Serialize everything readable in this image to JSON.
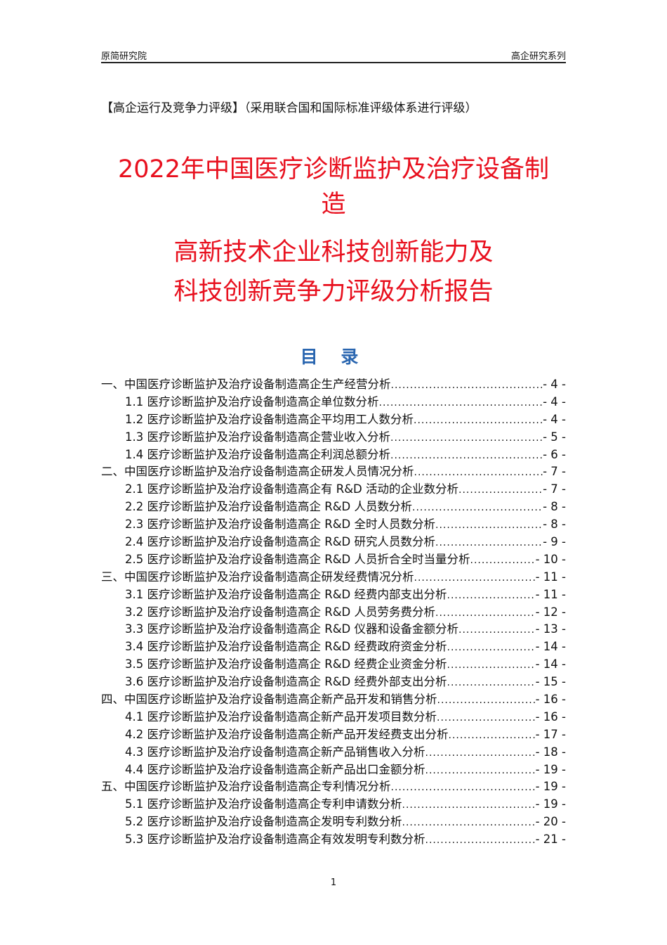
{
  "header": {
    "left": "原简研究院",
    "right": "高企研究系列"
  },
  "subtitle": "【高企运行及竞争力评级】（采用联合国和国际标准评级体系进行评级）",
  "title": {
    "line1": "2022年中国医疗诊断监护及治疗设备制",
    "line2": "造",
    "line3": "高新技术企业科技创新能力及",
    "line4": "科技创新竞争力评级分析报告"
  },
  "toc_heading": "目 录",
  "toc": [
    {
      "level": 1,
      "text": "一、中国医疗诊断监护及治疗设备制造高企生产经营分析",
      "page": "- 4 -"
    },
    {
      "level": 2,
      "text": "1.1 医疗诊断监护及治疗设备制造高企单位数分析",
      "page": "- 4 -"
    },
    {
      "level": 2,
      "text": "1.2 医疗诊断监护及治疗设备制造高企平均用工人数分析",
      "page": "- 4 -"
    },
    {
      "level": 2,
      "text": "1.3 医疗诊断监护及治疗设备制造高企营业收入分析",
      "page": "- 5 -"
    },
    {
      "level": 2,
      "text": "1.4 医疗诊断监护及治疗设备制造高企利润总额分析",
      "page": "- 6 -"
    },
    {
      "level": 1,
      "text": "二、中国医疗诊断监护及治疗设备制造高企研发人员情况分析",
      "page": "- 7 -"
    },
    {
      "level": 2,
      "text": "2.1 医疗诊断监护及治疗设备制造高企有 R&D 活动的企业数分析",
      "page": "- 7 -"
    },
    {
      "level": 2,
      "text": "2.2 医疗诊断监护及治疗设备制造高企 R&D 人员数分析",
      "page": "- 8 -"
    },
    {
      "level": 2,
      "text": "2.3 医疗诊断监护及治疗设备制造高企 R&D 全时人员数分析",
      "page": "- 8 -"
    },
    {
      "level": 2,
      "text": "2.4 医疗诊断监护及治疗设备制造高企 R&D 研究人员数分析",
      "page": "- 9 -"
    },
    {
      "level": 2,
      "text": "2.5 医疗诊断监护及治疗设备制造高企 R&D 人员折合全时当量分析",
      "page": "- 10 -"
    },
    {
      "level": 1,
      "text": "三、中国医疗诊断监护及治疗设备制造高企研发经费情况分析",
      "page": "- 11 -"
    },
    {
      "level": 2,
      "text": "3.1 医疗诊断监护及治疗设备制造高企 R&D 经费内部支出分析",
      "page": "- 11 -"
    },
    {
      "level": 2,
      "text": "3.2 医疗诊断监护及治疗设备制造高企 R&D 人员劳务费分析",
      "page": "- 12 -"
    },
    {
      "level": 2,
      "text": "3.3 医疗诊断监护及治疗设备制造高企 R&D 仪器和设备金额分析",
      "page": "- 13 -"
    },
    {
      "level": 2,
      "text": "3.4 医疗诊断监护及治疗设备制造高企 R&D 经费政府资金分析",
      "page": "- 14 -"
    },
    {
      "level": 2,
      "text": "3.5 医疗诊断监护及治疗设备制造高企 R&D 经费企业资金分析",
      "page": "- 14 -"
    },
    {
      "level": 2,
      "text": "3.6 医疗诊断监护及治疗设备制造高企 R&D 经费外部支出分析",
      "page": "- 15 -"
    },
    {
      "level": 1,
      "text": "四、中国医疗诊断监护及治疗设备制造高企新产品开发和销售分析",
      "page": "- 16 -"
    },
    {
      "level": 2,
      "text": "4.1 医疗诊断监护及治疗设备制造高企新产品开发项目数分析",
      "page": "- 16 -"
    },
    {
      "level": 2,
      "text": "4.2 医疗诊断监护及治疗设备制造高企新产品开发经费支出分析",
      "page": "- 17 -"
    },
    {
      "level": 2,
      "text": "4.3 医疗诊断监护及治疗设备制造高企新产品销售收入分析",
      "page": "- 18 -"
    },
    {
      "level": 2,
      "text": "4.4 医疗诊断监护及治疗设备制造高企新产品出口金额分析",
      "page": "- 19 -"
    },
    {
      "level": 1,
      "text": "五、中国医疗诊断监护及治疗设备制造高企专利情况分析",
      "page": "- 19 -"
    },
    {
      "level": 2,
      "text": "5.1 医疗诊断监护及治疗设备制造高企专利申请数分析",
      "page": "- 19 -"
    },
    {
      "level": 2,
      "text": "5.2 医疗诊断监护及治疗设备制造高企发明专利数分析",
      "page": "- 20 -"
    },
    {
      "level": 2,
      "text": "5.3 医疗诊断监护及治疗设备制造高企有效发明专利数分析",
      "page": "- 21 -"
    }
  ],
  "page_number": "1"
}
